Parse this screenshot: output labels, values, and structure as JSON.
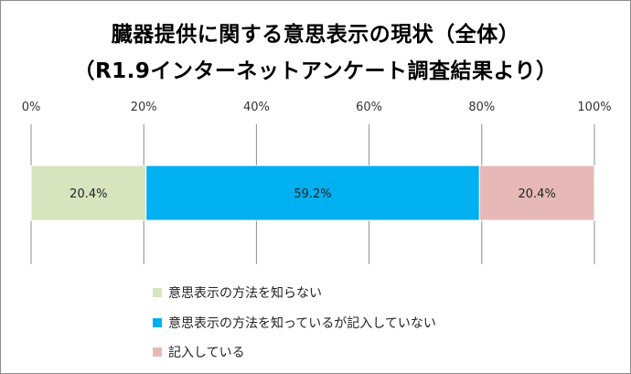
{
  "title_line1": "臓器提供に関する意思表示の現状（全体）",
  "title_line2": "（R1.9インターネットアンケート調査結果より）",
  "chart_data": {
    "type": "bar",
    "orientation": "horizontal",
    "stacked": true,
    "percent_stacked": true,
    "categories": [
      ""
    ],
    "series": [
      {
        "name": "意思表示の方法を知らない",
        "values": [
          20.4
        ],
        "label": "20.4%",
        "color": "#d7e4bd"
      },
      {
        "name": "意思表示の方法を知っているが記入していない",
        "values": [
          59.2
        ],
        "label": "59.2%",
        "color": "#00b0f0"
      },
      {
        "name": "記入している",
        "values": [
          20.4
        ],
        "label": "20.4%",
        "color": "#e6b9b8"
      }
    ],
    "xlim": [
      0,
      100
    ],
    "x_ticks": [
      "0%",
      "20%",
      "40%",
      "60%",
      "80%",
      "100%"
    ],
    "grid": true,
    "legend_position": "bottom"
  }
}
